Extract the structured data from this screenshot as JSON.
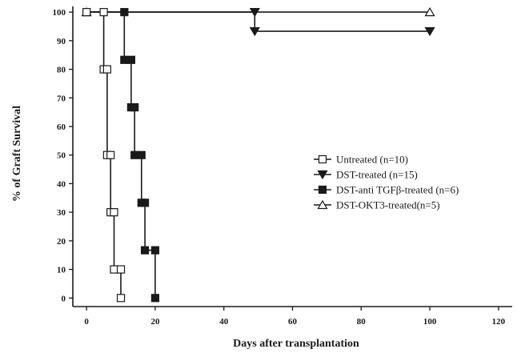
{
  "chart_data": {
    "type": "line",
    "xlabel": "Days after transplantation",
    "ylabel": "% of Graft Survival",
    "xlim": [
      -4,
      124
    ],
    "ylim": [
      -3,
      102
    ],
    "xticks": [
      0,
      20,
      40,
      60,
      80,
      100,
      120
    ],
    "yticks": [
      0,
      10,
      20,
      30,
      40,
      50,
      60,
      70,
      80,
      90,
      100
    ],
    "legend_position": "right",
    "series": [
      {
        "name": "Untreated (n=10)",
        "marker": "open-square",
        "color": "#1a1a1a",
        "steps": [
          [
            0,
            100
          ],
          [
            5,
            100
          ],
          [
            5,
            80
          ],
          [
            6,
            80
          ],
          [
            6,
            50
          ],
          [
            7,
            50
          ],
          [
            7,
            30
          ],
          [
            8,
            30
          ],
          [
            8,
            10
          ],
          [
            10,
            10
          ],
          [
            10,
            0
          ]
        ],
        "markers": [
          [
            0,
            100
          ],
          [
            5,
            100
          ],
          [
            5,
            80
          ],
          [
            6,
            80
          ],
          [
            6,
            50
          ],
          [
            7,
            50
          ],
          [
            7,
            30
          ],
          [
            8,
            30
          ],
          [
            8,
            10
          ],
          [
            10,
            10
          ],
          [
            10,
            0
          ]
        ]
      },
      {
        "name": "DST-treated (n=15)",
        "marker": "filled-triangle-down",
        "color": "#1a1a1a",
        "steps": [
          [
            0,
            100
          ],
          [
            49,
            100
          ],
          [
            49,
            93.3
          ],
          [
            100,
            93.3
          ]
        ],
        "markers": [
          [
            49,
            100
          ],
          [
            49,
            93.3
          ],
          [
            100,
            93.3
          ]
        ]
      },
      {
        "name": "DST-anti TGFβ-treated (n=6)",
        "marker": "filled-square",
        "color": "#1a1a1a",
        "steps": [
          [
            0,
            100
          ],
          [
            11,
            100
          ],
          [
            11,
            83.3
          ],
          [
            13,
            83.3
          ],
          [
            13,
            66.7
          ],
          [
            14,
            66.7
          ],
          [
            14,
            50
          ],
          [
            16,
            50
          ],
          [
            16,
            33.3
          ],
          [
            17,
            33.3
          ],
          [
            17,
            16.7
          ],
          [
            20,
            16.7
          ],
          [
            20,
            0
          ]
        ],
        "markers": [
          [
            11,
            100
          ],
          [
            11,
            83.3
          ],
          [
            13,
            83.3
          ],
          [
            13,
            66.7
          ],
          [
            14,
            66.7
          ],
          [
            14,
            50
          ],
          [
            16,
            50
          ],
          [
            16,
            33.3
          ],
          [
            17,
            33.3
          ],
          [
            17,
            16.7
          ],
          [
            20,
            16.7
          ],
          [
            20,
            0
          ]
        ]
      },
      {
        "name": "DST-OKT3-treated(n=5)",
        "marker": "open-triangle-up",
        "color": "#1a1a1a",
        "steps": [
          [
            0,
            100
          ],
          [
            100,
            100
          ]
        ],
        "markers": [
          [
            0,
            100
          ],
          [
            100,
            100
          ]
        ]
      }
    ]
  }
}
